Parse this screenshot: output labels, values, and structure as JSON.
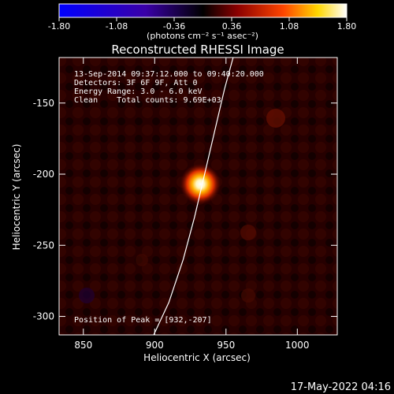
{
  "chart_data": {
    "type": "heatmap",
    "title": "Reconstructed RHESSI Image",
    "xlabel": "Heliocentric X (arcsec)",
    "ylabel": "Heliocentric Y (arcsec)",
    "xlim": [
      833,
      1028
    ],
    "ylim": [
      -313,
      -118
    ],
    "xticks": [
      850,
      900,
      950,
      1000
    ],
    "yticks": [
      -150,
      -200,
      -250,
      -300
    ],
    "colorbar": {
      "min": -1.8,
      "max": 1.8,
      "ticks": [
        "-1.80",
        "-1.08",
        "-0.36",
        "0.36",
        "1.08",
        "1.80"
      ],
      "unit_label": "(photons cm⁻² s⁻¹ asec⁻²)"
    },
    "colormap": [
      "#0000ff",
      "#3a00a8",
      "#000000",
      "#8b0000",
      "#ff4500",
      "#ffd700",
      "#ffffff"
    ],
    "annotations": [
      "13-Sep-2014 09:37:12.000 to 09:40:20.000",
      "Detectors: 3F 6F 9F, Att 0",
      "Energy Range: 3.0 - 6.0 keV",
      "Clean    Total counts: 9.69E+03"
    ],
    "peak": {
      "x": 932,
      "y": -207,
      "label": "Position of Peak = [932,-207]"
    },
    "limb": [
      [
        897,
        -318
      ],
      [
        910,
        -290
      ],
      [
        920,
        -260
      ],
      [
        928,
        -230
      ],
      [
        935,
        -200
      ],
      [
        942,
        -170
      ],
      [
        949,
        -140
      ],
      [
        955,
        -118
      ]
    ]
  },
  "footer": {
    "timestamp": "17-May-2022 04:16"
  }
}
